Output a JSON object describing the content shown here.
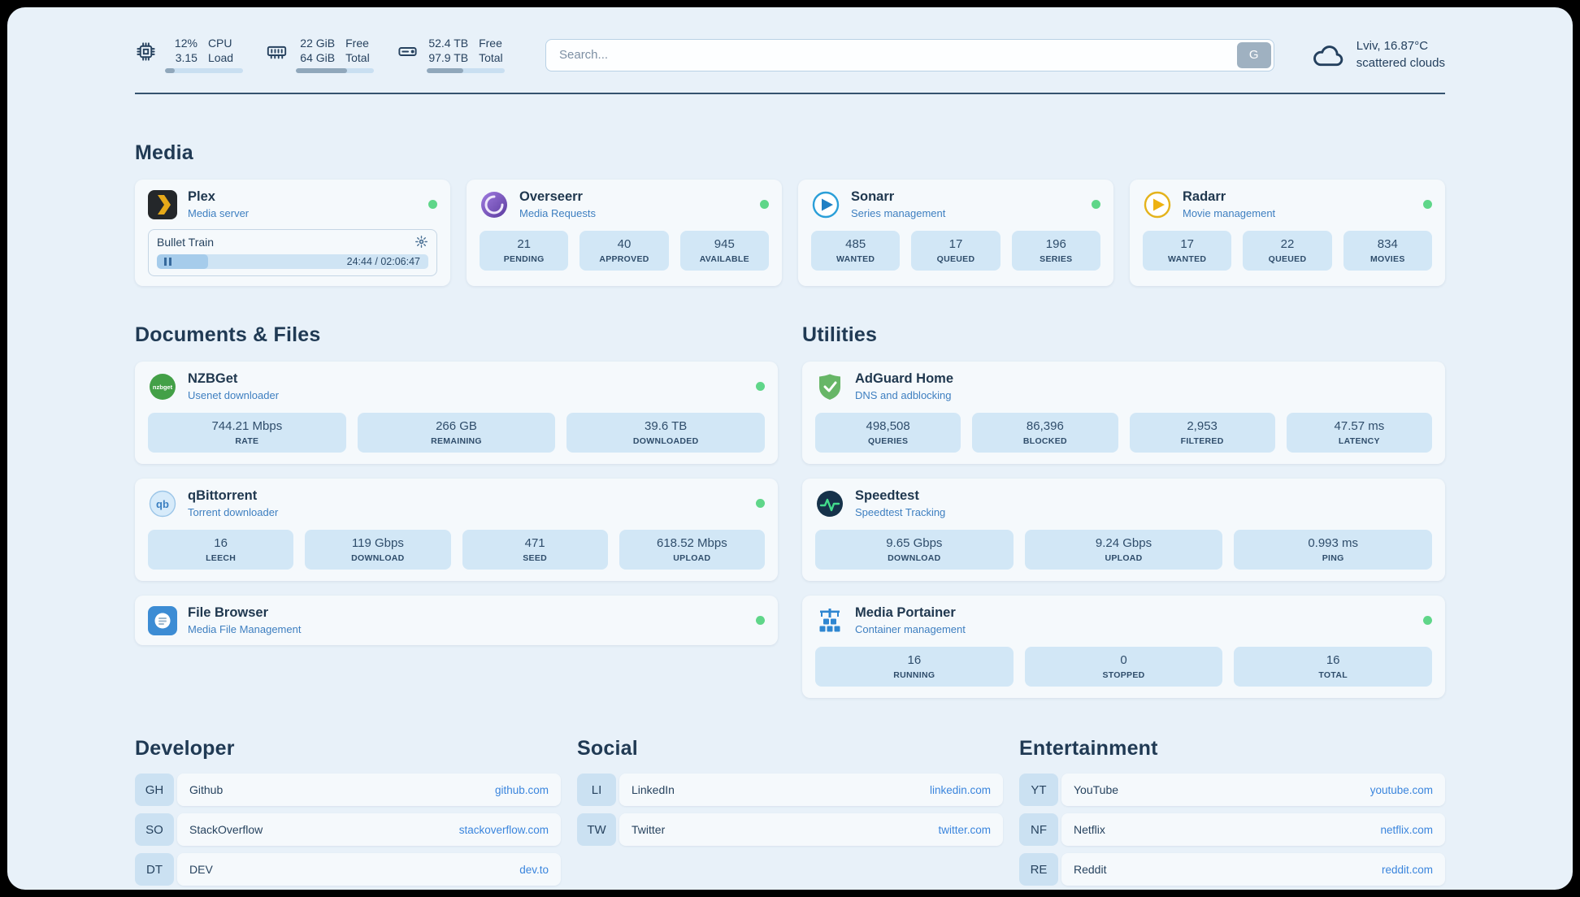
{
  "colors": {
    "accent_blue": "#3a85dd",
    "status_green": "#5fd689",
    "stat_bg": "#d2e7f6",
    "page_bg": "#e8f1f9"
  },
  "icons": {
    "search_provider": "G",
    "playback": "pause",
    "plex_settings": "gear",
    "weather": "cloud",
    "cpu": "chip",
    "memory": "ram",
    "disk": "drive"
  },
  "topbar": {
    "cpu": {
      "value1": "12%",
      "value2": "3.15",
      "label1": "CPU",
      "label2": "Load",
      "percent": 12
    },
    "memory": {
      "value1": "22 GiB",
      "value2": "64 GiB",
      "label1": "Free",
      "label2": "Total",
      "percent": 66
    },
    "disk": {
      "value1": "52.4 TB",
      "value2": "97.9 TB",
      "label1": "Free",
      "label2": "Total",
      "percent": 47
    },
    "search": {
      "placeholder": "Search...",
      "button_label": "G"
    },
    "weather": {
      "location": "Lviv, 16.87°C",
      "condition": "scattered clouds"
    }
  },
  "media": {
    "title": "Media",
    "plex": {
      "title": "Plex",
      "subtitle": "Media server",
      "now_playing": "Bullet Train",
      "time": "24:44 / 02:06:47",
      "progress_percent": 19
    },
    "overseerr": {
      "title": "Overseerr",
      "subtitle": "Media Requests",
      "stats": [
        {
          "value": "21",
          "label": "PENDING"
        },
        {
          "value": "40",
          "label": "APPROVED"
        },
        {
          "value": "945",
          "label": "AVAILABLE"
        }
      ]
    },
    "sonarr": {
      "title": "Sonarr",
      "subtitle": "Series management",
      "stats": [
        {
          "value": "485",
          "label": "WANTED"
        },
        {
          "value": "17",
          "label": "QUEUED"
        },
        {
          "value": "196",
          "label": "SERIES"
        }
      ]
    },
    "radarr": {
      "title": "Radarr",
      "subtitle": "Movie management",
      "stats": [
        {
          "value": "17",
          "label": "WANTED"
        },
        {
          "value": "22",
          "label": "QUEUED"
        },
        {
          "value": "834",
          "label": "MOVIES"
        }
      ]
    }
  },
  "documents": {
    "title": "Documents & Files",
    "nzbget": {
      "title": "NZBGet",
      "subtitle": "Usenet downloader",
      "stats": [
        {
          "value": "744.21 Mbps",
          "label": "RATE"
        },
        {
          "value": "266 GB",
          "label": "REMAINING"
        },
        {
          "value": "39.6 TB",
          "label": "DOWNLOADED"
        }
      ]
    },
    "qbittorrent": {
      "title": "qBittorrent",
      "subtitle": "Torrent downloader",
      "stats": [
        {
          "value": "16",
          "label": "LEECH"
        },
        {
          "value": "119 Gbps",
          "label": "DOWNLOAD"
        },
        {
          "value": "471",
          "label": "SEED"
        },
        {
          "value": "618.52 Mbps",
          "label": "UPLOAD"
        }
      ]
    },
    "filebrowser": {
      "title": "File Browser",
      "subtitle": "Media File Management"
    }
  },
  "utilities": {
    "title": "Utilities",
    "adguard": {
      "title": "AdGuard Home",
      "subtitle": "DNS and adblocking",
      "stats": [
        {
          "value": "498,508",
          "label": "QUERIES"
        },
        {
          "value": "86,396",
          "label": "BLOCKED"
        },
        {
          "value": "2,953",
          "label": "FILTERED"
        },
        {
          "value": "47.57 ms",
          "label": "LATENCY"
        }
      ]
    },
    "speedtest": {
      "title": "Speedtest",
      "subtitle": "Speedtest Tracking",
      "stats": [
        {
          "value": "9.65 Gbps",
          "label": "DOWNLOAD"
        },
        {
          "value": "9.24 Gbps",
          "label": "UPLOAD"
        },
        {
          "value": "0.993 ms",
          "label": "PING"
        }
      ]
    },
    "portainer": {
      "title": "Media Portainer",
      "subtitle": "Container management",
      "stats": [
        {
          "value": "16",
          "label": "RUNNING"
        },
        {
          "value": "0",
          "label": "STOPPED"
        },
        {
          "value": "16",
          "label": "TOTAL"
        }
      ]
    }
  },
  "bookmarks": {
    "developer": {
      "title": "Developer",
      "items": [
        {
          "abbr": "GH",
          "name": "Github",
          "link": "github.com"
        },
        {
          "abbr": "SO",
          "name": "StackOverflow",
          "link": "stackoverflow.com"
        },
        {
          "abbr": "DT",
          "name": "DEV",
          "link": "dev.to"
        }
      ]
    },
    "social": {
      "title": "Social",
      "items": [
        {
          "abbr": "LI",
          "name": "LinkedIn",
          "link": "linkedin.com"
        },
        {
          "abbr": "TW",
          "name": "Twitter",
          "link": "twitter.com"
        }
      ]
    },
    "entertainment": {
      "title": "Entertainment",
      "items": [
        {
          "abbr": "YT",
          "name": "YouTube",
          "link": "youtube.com"
        },
        {
          "abbr": "NF",
          "name": "Netflix",
          "link": "netflix.com"
        },
        {
          "abbr": "RE",
          "name": "Reddit",
          "link": "reddit.com"
        }
      ]
    }
  }
}
